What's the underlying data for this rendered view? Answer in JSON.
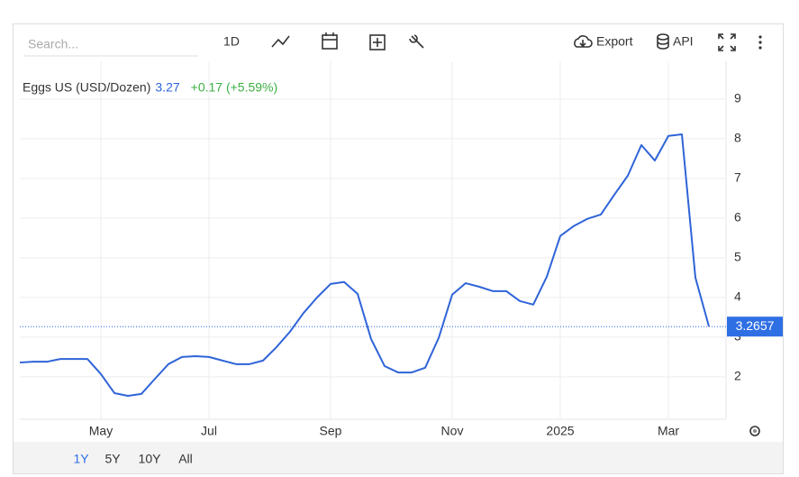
{
  "toolbar": {
    "search_placeholder": "Search...",
    "interval": "1D",
    "export": "Export",
    "api": "API"
  },
  "range_buttons": [
    "1Y",
    "5Y",
    "10Y",
    "All"
  ],
  "active_range_color": "#2f6fe4",
  "chart_data": {
    "type": "line",
    "categories": [
      null,
      null,
      null,
      null,
      null,
      null,
      "May",
      null,
      null,
      null,
      null,
      null,
      null,
      null,
      "Jul",
      null,
      null,
      null,
      null,
      null,
      null,
      null,
      null,
      "Sep",
      null,
      null,
      null,
      null,
      null,
      null,
      null,
      null,
      "Nov",
      null,
      null,
      null,
      null,
      null,
      null,
      null,
      "2025",
      null,
      null,
      null,
      null,
      null,
      null,
      null,
      "Mar",
      null,
      null,
      null
    ],
    "series": [
      {
        "name": "Eggs US (USD/Dozen)",
        "color": "#2f64d8",
        "values": [
          2.36,
          2.38,
          2.38,
          2.45,
          2.45,
          2.45,
          2.07,
          1.59,
          1.52,
          1.57,
          1.95,
          2.32,
          2.5,
          2.52,
          2.5,
          2.41,
          2.32,
          2.32,
          2.41,
          2.75,
          3.14,
          3.61,
          4.0,
          4.34,
          4.39,
          4.09,
          2.95,
          2.27,
          2.11,
          2.11,
          2.23,
          2.98,
          4.07,
          4.36,
          4.27,
          4.16,
          4.16,
          3.91,
          3.82,
          4.52,
          5.55,
          5.8,
          5.98,
          6.09,
          6.59,
          7.07,
          7.84,
          7.45,
          8.07,
          8.11,
          4.5,
          3.27
        ]
      }
    ],
    "last_value": 3.27,
    "change_label": "+0.17 (+5.59%)",
    "change_color": "#3cb043",
    "price_tag": 3.2657,
    "ylim": [
      0.93,
      9.95
    ],
    "yticks": [
      2,
      3,
      4,
      5,
      6,
      7,
      8,
      9
    ],
    "grid": true
  }
}
